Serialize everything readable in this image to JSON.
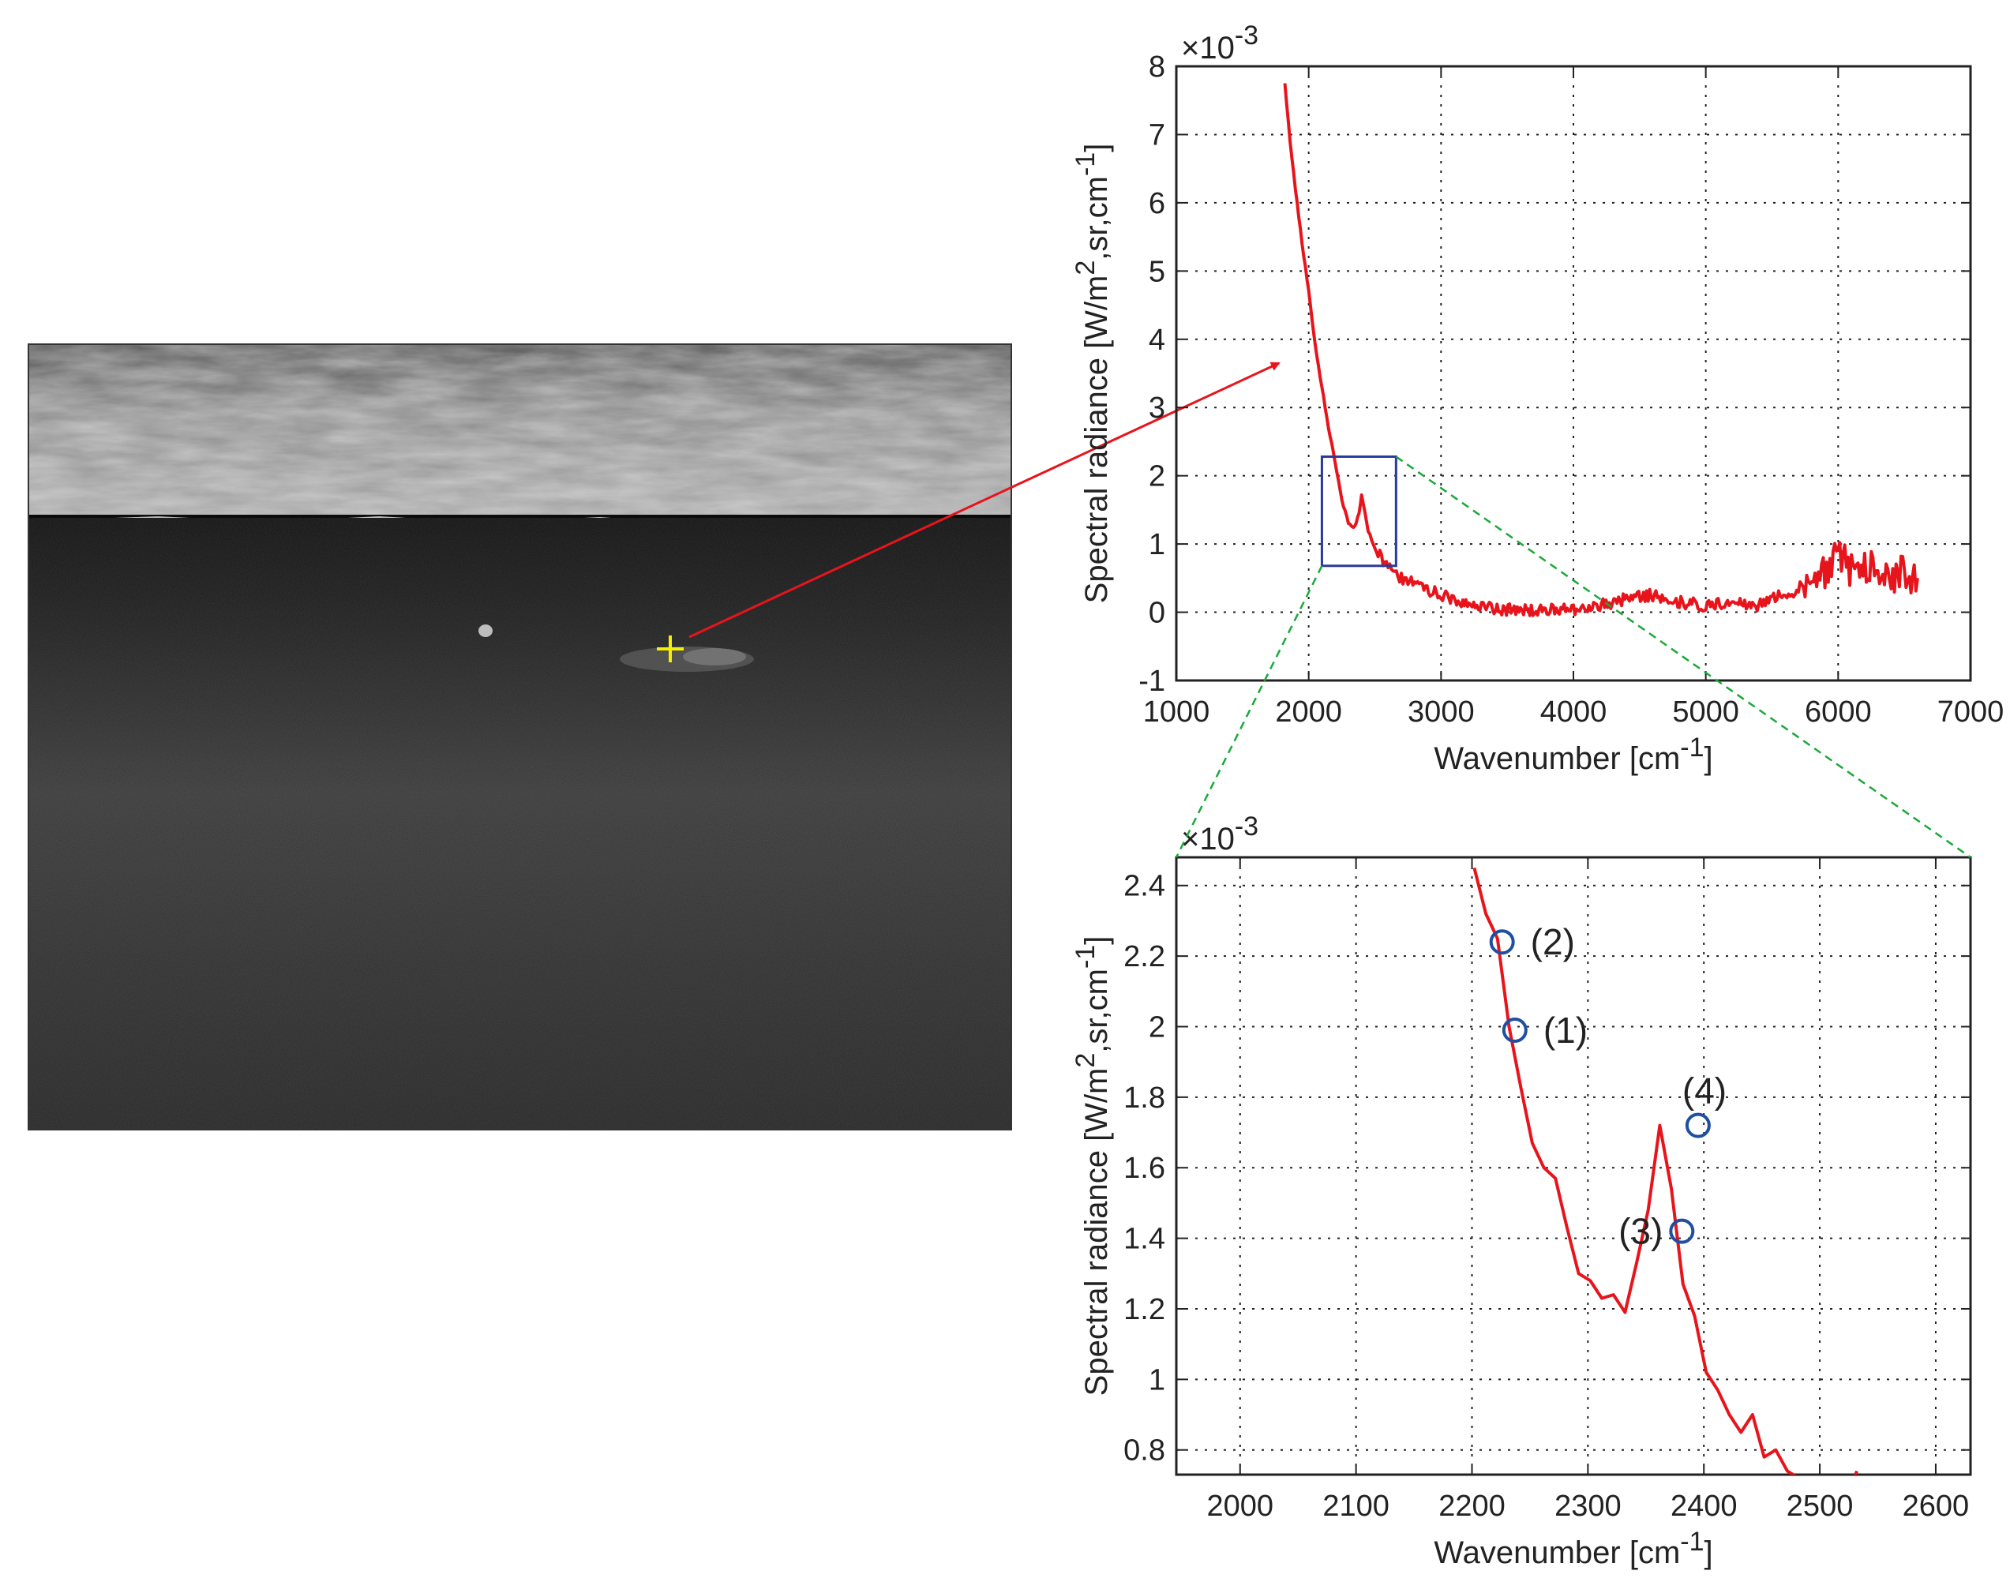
{
  "colors": {
    "curve": "#e8141c",
    "marker": "#1f4fa0",
    "zoom_box": "#2a3a9a",
    "zoom_lines": "#1aa83a",
    "pointer_arrow": "#e8141c",
    "crosshair": "#f5f000",
    "grid": "#222222"
  },
  "thermal_image": {
    "description_icon": "thermal-infrared-scene",
    "marker_symbol": "+"
  },
  "chart_data": [
    {
      "type": "line",
      "xlabel": "Wavenumber [cm",
      "xlabel_sup": "-1",
      "xlabel_end": "]",
      "ylabel": "Spectral radiance [W/m",
      "ylabel_sup1": "2",
      "ylabel_mid": ",sr,cm",
      "ylabel_sup2": "-1",
      "ylabel_end": "]",
      "y_multiplier": "×10",
      "y_multiplier_exp": "-3",
      "xlim": [
        1000,
        7000
      ],
      "ylim": [
        -1,
        8
      ],
      "xticks": [
        "1000",
        "2000",
        "3000",
        "4000",
        "5000",
        "6000",
        "7000"
      ],
      "yticks": [
        "-1",
        "0",
        "1",
        "2",
        "3",
        "4",
        "5",
        "6",
        "7",
        "8"
      ],
      "grid": true,
      "zoom_region": {
        "x": [
          2100,
          2660
        ],
        "y": [
          0.68,
          2.28
        ]
      },
      "series": [
        {
          "x": [
            1820,
            1860,
            1900,
            1950,
            2000,
            2050,
            2100,
            2150,
            2200,
            2250,
            2300,
            2350,
            2380,
            2400,
            2450,
            2500,
            2600,
            2700,
            2800,
            3000,
            3200,
            3400,
            3600,
            3800,
            4000,
            4200,
            4400,
            4600,
            4800,
            5000,
            5200,
            5400,
            5500,
            5600,
            5700,
            5800,
            5900,
            6000,
            6100,
            6200,
            6300,
            6400,
            6500,
            6600
          ],
          "y": [
            7.75,
            6.9,
            6.2,
            5.4,
            4.7,
            3.9,
            3.3,
            2.7,
            2.2,
            1.65,
            1.3,
            1.25,
            1.45,
            1.72,
            1.2,
            0.95,
            0.65,
            0.5,
            0.42,
            0.25,
            0.12,
            0.05,
            0.02,
            0.05,
            0.05,
            0.1,
            0.2,
            0.25,
            0.15,
            0.1,
            0.15,
            0.1,
            0.2,
            0.25,
            0.3,
            0.5,
            0.55,
            0.8,
            0.65,
            0.7,
            0.6,
            0.55,
            0.6,
            0.5
          ]
        }
      ]
    },
    {
      "type": "line",
      "xlabel": "Wavenumber [cm",
      "xlabel_sup": "-1",
      "xlabel_end": "]",
      "ylabel": "Spectral radiance [W/m",
      "ylabel_sup1": "2",
      "ylabel_mid": ",sr,cm",
      "ylabel_sup2": "-1",
      "ylabel_end": "]",
      "y_multiplier": "×10",
      "y_multiplier_exp": "-3",
      "xlim": [
        1945,
        2630
      ],
      "ylim": [
        0.73,
        2.48
      ],
      "xticks": [
        "2000",
        "2100",
        "2200",
        "2300",
        "2400",
        "2500",
        "2600"
      ],
      "yticks": [
        "0.8",
        "1",
        "1.2",
        "1.4",
        "1.6",
        "1.8",
        "2",
        "2.2",
        "2.4"
      ],
      "grid": true,
      "series": [
        {
          "x": [
            2202,
            2212,
            2222,
            2232,
            2242,
            2252,
            2262,
            2272,
            2282,
            2292,
            2302,
            2312,
            2322,
            2332,
            2342,
            2352,
            2362,
            2372,
            2382,
            2392,
            2402,
            2412,
            2422,
            2432,
            2442,
            2452,
            2462,
            2472,
            2482,
            2492,
            2502,
            2512,
            2522,
            2532
          ],
          "y": [
            2.45,
            2.32,
            2.25,
            2.0,
            1.83,
            1.67,
            1.6,
            1.57,
            1.43,
            1.3,
            1.28,
            1.23,
            1.24,
            1.19,
            1.33,
            1.48,
            1.72,
            1.54,
            1.27,
            1.18,
            1.02,
            0.97,
            0.9,
            0.85,
            0.9,
            0.78,
            0.8,
            0.74,
            0.72,
            0.7,
            0.71,
            0.69,
            0.66,
            0.74
          ]
        }
      ],
      "annotations": [
        {
          "label": "(1)",
          "x": 2237,
          "y": 1.99
        },
        {
          "label": "(2)",
          "x": 2226,
          "y": 2.24
        },
        {
          "label": "(3)",
          "x": 2381,
          "y": 1.42
        },
        {
          "label": "(4)",
          "x": 2395,
          "y": 1.72
        }
      ]
    }
  ]
}
